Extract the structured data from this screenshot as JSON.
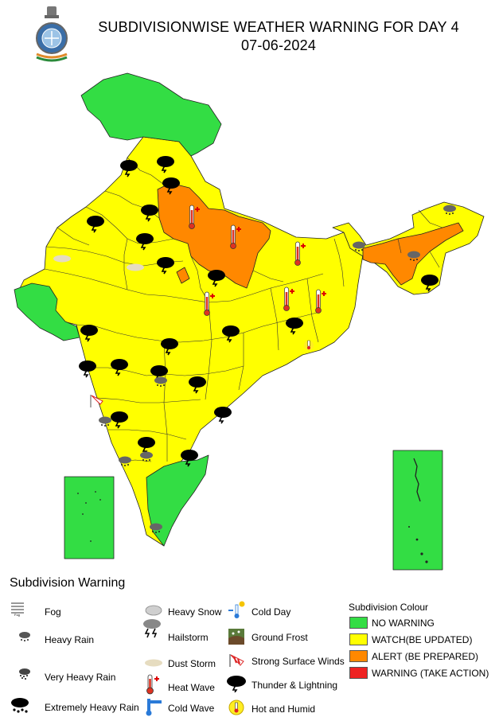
{
  "header": {
    "title": "SUBDIVISIONWISE WEATHER WARNING FOR DAY 4",
    "date": "07-06-2024"
  },
  "emblem_icon": "imd-emblem-icon",
  "colors": {
    "no_warning": "#33dd44",
    "watch": "#ffff00",
    "alert": "#ff8800",
    "warning": "#ee2222",
    "outline": "#222222"
  },
  "legend": {
    "title": "Subdivision Warning",
    "phenomena": {
      "fog": "Fog",
      "heavy_rain": "Heavy Rain",
      "very_heavy_rain": "Very Heavy Rain",
      "extremely_heavy_rain": "Extremely Heavy Rain",
      "heavy_snow": "Heavy Snow",
      "hailstorm": "Hailstorm",
      "dust_storm": "Dust Storm",
      "heat_wave": "Heat Wave",
      "cold_wave": "Cold Wave",
      "cold_day": "Cold Day",
      "ground_frost": "Ground Frost",
      "strong_surface_winds": "Strong Surface Winds",
      "thunder_lightning": "Thunder & Lightning",
      "hot_humid": "Hot and Humid"
    },
    "colour_title": "Subdivision Colour",
    "colours": {
      "no_warning": "NO WARNING",
      "watch": "WATCH(BE UPDATED)",
      "alert": "ALERT (BE PREPARED)",
      "warning": "WARNING (TAKE ACTION)"
    }
  },
  "map_markers": {
    "thunder": 22,
    "heat_wave": 6,
    "heavy_rain": 8,
    "dust_storm": 2,
    "hot_humid": 1,
    "strong_surface_winds": 1
  }
}
